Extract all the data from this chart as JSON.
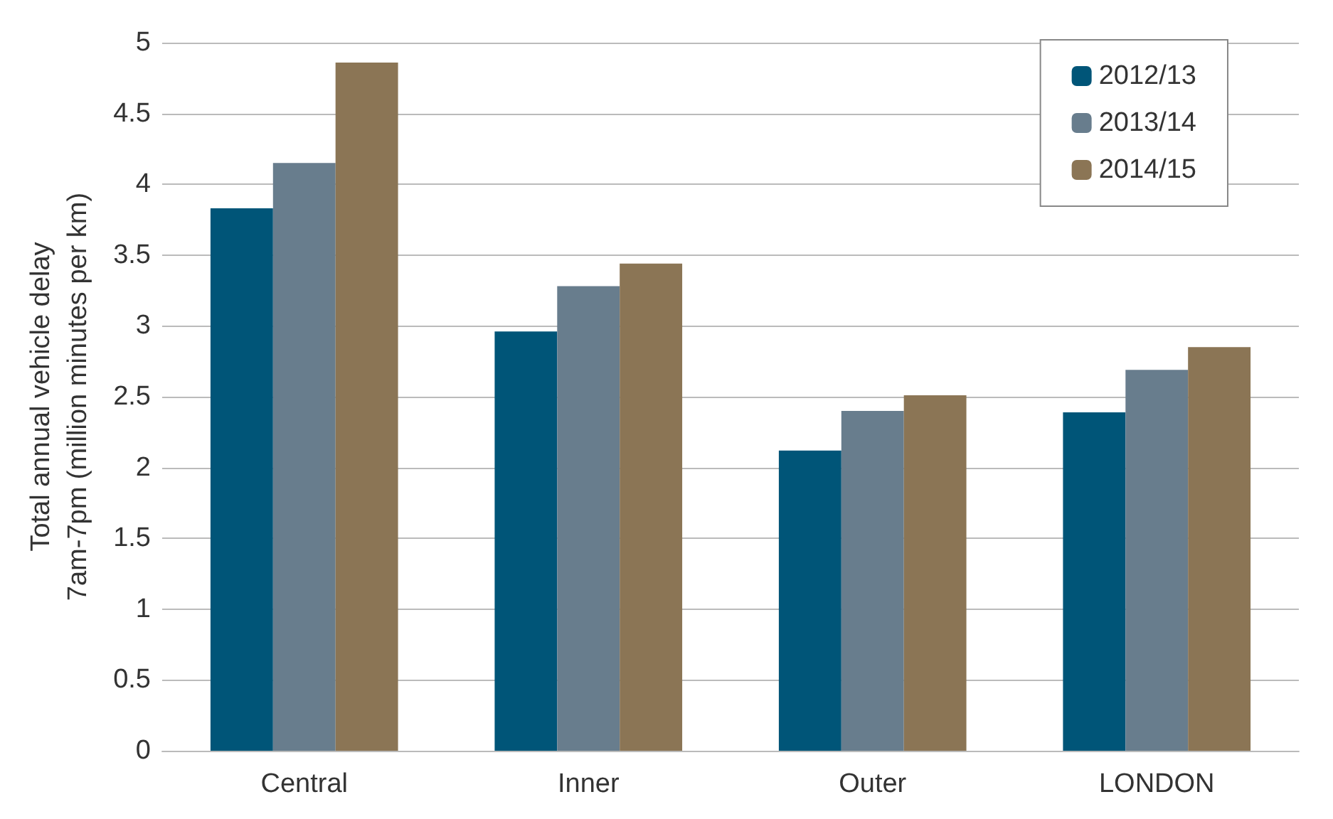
{
  "chart_data": {
    "type": "bar",
    "ylabel": "Total annual vehicle delay\n7am-7pm (million minutes per km)",
    "categories": [
      "Central",
      "Inner",
      "Outer",
      "LONDON"
    ],
    "series": [
      {
        "name": "2012/13",
        "color": "#005578",
        "values": [
          3.83,
          2.96,
          2.12,
          2.39
        ]
      },
      {
        "name": "2013/14",
        "color": "#687d8d",
        "values": [
          4.15,
          3.28,
          2.4,
          2.69
        ]
      },
      {
        "name": "2014/15",
        "color": "#8b7555",
        "values": [
          4.86,
          3.44,
          2.51,
          2.85
        ]
      }
    ],
    "ylim": [
      0,
      5
    ],
    "yticks": [
      0,
      0.5,
      1,
      1.5,
      2,
      2.5,
      3,
      3.5,
      4,
      4.5,
      5
    ],
    "grid": "y",
    "legend": "top right"
  }
}
